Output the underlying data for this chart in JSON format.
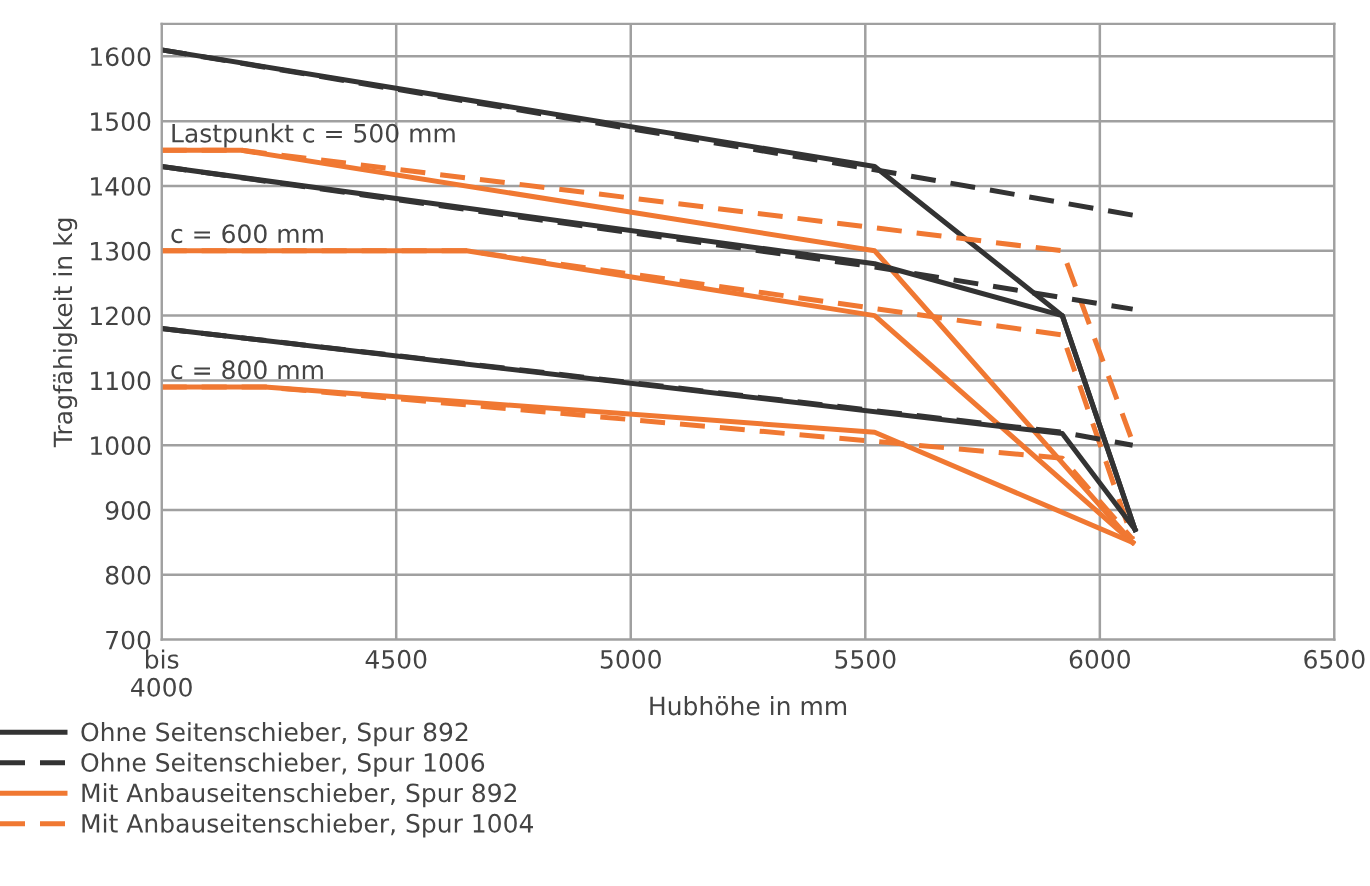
{
  "chart_data": {
    "type": "line",
    "xlabel": "Hubhöhe in mm",
    "ylabel": "Tragfähigkeit in kg",
    "xlim": [
      4000,
      6500
    ],
    "xticks": [
      {
        "value": 4000,
        "label": "bis\n4000"
      },
      4500,
      5000,
      5500,
      6000,
      6500
    ],
    "ylim": [
      700,
      1650
    ],
    "yticks": [
      700,
      800,
      900,
      1000,
      1100,
      1200,
      1300,
      1400,
      1500,
      1600
    ],
    "grid": true,
    "legend": "bottom",
    "marker": "none",
    "annotations": [
      "Lastpunkt c = 500 mm",
      "c = 600 mm",
      "c = 800 mm"
    ],
    "series": [
      {
        "name": "Ohne Seitenschieber, Spur 892",
        "color": "#333333",
        "line_style": "solid",
        "x": [
          4000,
          5520,
          5920,
          6075
        ],
        "values": [
          1610,
          1430,
          1200,
          870
        ]
      },
      {
        "name": "Ohne Seitenschieber, Spur 1006",
        "color": "#333333",
        "line_style": "dashed",
        "x": [
          4000,
          5520,
          6070
        ],
        "values": [
          1610,
          1425,
          1355
        ]
      },
      {
        "name": "Mit Anbauseitenschieber, Spur 892",
        "color": "#f07832",
        "line_style": "solid",
        "x": [
          4000,
          4170,
          5520,
          6070
        ],
        "values": [
          1455,
          1455,
          1300,
          850
        ]
      },
      {
        "name": "Mit Anbauseitenschieber, Spur 1004",
        "color": "#f07832",
        "line_style": "dashed",
        "x": [
          4000,
          4170,
          5920,
          6070
        ],
        "values": [
          1455,
          1455,
          1300,
          1005
        ]
      },
      {
        "color": "#333333",
        "line_style": "solid",
        "x": [
          4000,
          5520,
          5920,
          6075
        ],
        "values": [
          1430,
          1280,
          1200,
          870
        ]
      },
      {
        "color": "#333333",
        "line_style": "dashed",
        "x": [
          4000,
          5520,
          6070
        ],
        "values": [
          1430,
          1275,
          1210
        ]
      },
      {
        "color": "#f07832",
        "line_style": "solid",
        "x": [
          4000,
          4650,
          5520,
          6070
        ],
        "values": [
          1300,
          1300,
          1200,
          850
        ]
      },
      {
        "color": "#f07832",
        "line_style": "dashed",
        "x": [
          4000,
          4650,
          5920,
          6070
        ],
        "values": [
          1300,
          1300,
          1170,
          855
        ]
      },
      {
        "color": "#333333",
        "line_style": "solid",
        "x": [
          4000,
          5920,
          6075
        ],
        "values": [
          1180,
          1018,
          870
        ]
      },
      {
        "color": "#333333",
        "line_style": "dashed",
        "x": [
          4000,
          5920,
          6070
        ],
        "values": [
          1180,
          1020,
          1000
        ]
      },
      {
        "color": "#f07832",
        "line_style": "solid",
        "x": [
          4000,
          4220,
          5520,
          6070
        ],
        "values": [
          1090,
          1090,
          1020,
          850
        ]
      },
      {
        "color": "#f07832",
        "line_style": "dashed",
        "x": [
          4000,
          4220,
          5920,
          6070
        ],
        "values": [
          1090,
          1090,
          980,
          855
        ]
      }
    ]
  }
}
